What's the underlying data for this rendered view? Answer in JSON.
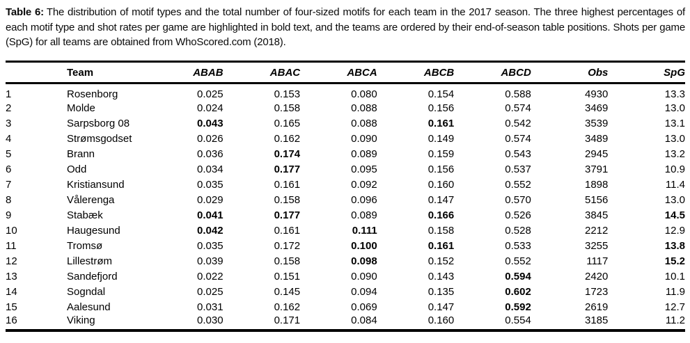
{
  "caption": {
    "label": "Table 6:",
    "text": "The distribution of motif types and the total number of four-sized motifs for each team in the 2017 season. The three highest percentages of each motif type and shot rates per game are highlighted in bold text, and the teams are ordered by their end-of-season table positions. Shots per game (SpG) for all teams are obtained from WhoScored.com (2018)."
  },
  "colors": {
    "text": "#000000",
    "rule": "#000000",
    "background": "#ffffff"
  },
  "table": {
    "columns": [
      "",
      "Team",
      "ABAB",
      "ABAC",
      "ABCA",
      "ABCB",
      "ABCD",
      "Obs",
      "SpG"
    ],
    "rows": [
      {
        "pos": "1",
        "team": "Rosenborg",
        "values": [
          "0.025",
          "0.153",
          "0.080",
          "0.154",
          "0.588",
          "4930",
          "13.3"
        ],
        "bold": []
      },
      {
        "pos": "2",
        "team": "Molde",
        "values": [
          "0.024",
          "0.158",
          "0.088",
          "0.156",
          "0.574",
          "3469",
          "13.0"
        ],
        "bold": []
      },
      {
        "pos": "3",
        "team": "Sarpsborg 08",
        "values": [
          "0.043",
          "0.165",
          "0.088",
          "0.161",
          "0.542",
          "3539",
          "13.1"
        ],
        "bold": [
          0,
          3
        ]
      },
      {
        "pos": "4",
        "team": "Strømsgodset",
        "values": [
          "0.026",
          "0.162",
          "0.090",
          "0.149",
          "0.574",
          "3489",
          "13.0"
        ],
        "bold": []
      },
      {
        "pos": "5",
        "team": "Brann",
        "values": [
          "0.036",
          "0.174",
          "0.089",
          "0.159",
          "0.543",
          "2945",
          "13.2"
        ],
        "bold": [
          1
        ]
      },
      {
        "pos": "6",
        "team": "Odd",
        "values": [
          "0.034",
          "0.177",
          "0.095",
          "0.156",
          "0.537",
          "3791",
          "10.9"
        ],
        "bold": [
          1
        ]
      },
      {
        "pos": "7",
        "team": "Kristiansund",
        "values": [
          "0.035",
          "0.161",
          "0.092",
          "0.160",
          "0.552",
          "1898",
          "11.4"
        ],
        "bold": []
      },
      {
        "pos": "8",
        "team": "Vålerenga",
        "values": [
          "0.029",
          "0.158",
          "0.096",
          "0.147",
          "0.570",
          "5156",
          "13.0"
        ],
        "bold": []
      },
      {
        "pos": "9",
        "team": "Stabæk",
        "values": [
          "0.041",
          "0.177",
          "0.089",
          "0.166",
          "0.526",
          "3845",
          "14.5"
        ],
        "bold": [
          0,
          1,
          3,
          6
        ]
      },
      {
        "pos": "10",
        "team": "Haugesund",
        "values": [
          "0.042",
          "0.161",
          "0.111",
          "0.158",
          "0.528",
          "2212",
          "12.9"
        ],
        "bold": [
          0,
          2
        ]
      },
      {
        "pos": "11",
        "team": "Tromsø",
        "values": [
          "0.035",
          "0.172",
          "0.100",
          "0.161",
          "0.533",
          "3255",
          "13.8"
        ],
        "bold": [
          2,
          3,
          6
        ]
      },
      {
        "pos": "12",
        "team": "Lillestrøm",
        "values": [
          "0.039",
          "0.158",
          "0.098",
          "0.152",
          "0.552",
          "1117",
          "15.2"
        ],
        "bold": [
          2,
          6
        ]
      },
      {
        "pos": "13",
        "team": "Sandefjord",
        "values": [
          "0.022",
          "0.151",
          "0.090",
          "0.143",
          "0.594",
          "2420",
          "10.1"
        ],
        "bold": [
          4
        ]
      },
      {
        "pos": "14",
        "team": "Sogndal",
        "values": [
          "0.025",
          "0.145",
          "0.094",
          "0.135",
          "0.602",
          "1723",
          "11.9"
        ],
        "bold": [
          4
        ]
      },
      {
        "pos": "15",
        "team": "Aalesund",
        "values": [
          "0.031",
          "0.162",
          "0.069",
          "0.147",
          "0.592",
          "2619",
          "12.7"
        ],
        "bold": [
          4
        ]
      },
      {
        "pos": "16",
        "team": "Viking",
        "values": [
          "0.030",
          "0.171",
          "0.084",
          "0.160",
          "0.554",
          "3185",
          "11.2"
        ],
        "bold": []
      }
    ]
  }
}
